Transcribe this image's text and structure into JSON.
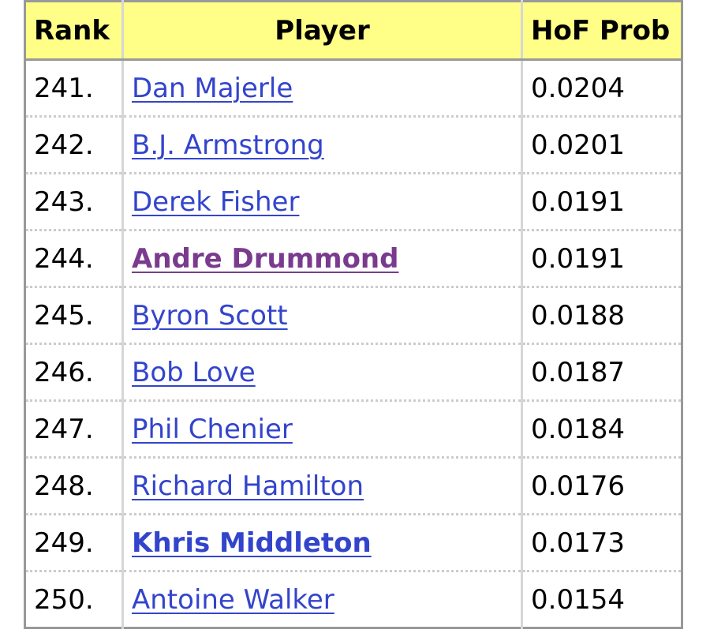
{
  "table": {
    "headers": {
      "rank": "Rank",
      "player": "Player",
      "prob": "HoF Prob"
    },
    "rows": [
      {
        "rank": "241.",
        "player": "Dan Majerle",
        "prob": "0.0204",
        "style": "normal"
      },
      {
        "rank": "242.",
        "player": "B.J. Armstrong",
        "prob": "0.0201",
        "style": "normal"
      },
      {
        "rank": "243.",
        "player": "Derek Fisher",
        "prob": "0.0191",
        "style": "normal"
      },
      {
        "rank": "244.",
        "player": "Andre Drummond",
        "prob": "0.0191",
        "style": "visited"
      },
      {
        "rank": "245.",
        "player": "Byron Scott",
        "prob": "0.0188",
        "style": "normal"
      },
      {
        "rank": "246.",
        "player": "Bob Love",
        "prob": "0.0187",
        "style": "normal"
      },
      {
        "rank": "247.",
        "player": "Phil Chenier",
        "prob": "0.0184",
        "style": "normal"
      },
      {
        "rank": "248.",
        "player": "Richard Hamilton",
        "prob": "0.0176",
        "style": "normal"
      },
      {
        "rank": "249.",
        "player": "Khris Middleton",
        "prob": "0.0173",
        "style": "bold"
      },
      {
        "rank": "250.",
        "player": "Antoine Walker",
        "prob": "0.0154",
        "style": "normal"
      }
    ]
  },
  "colors": {
    "header_bg": "#ffff88",
    "link": "#3344cc",
    "visited_link": "#7a3a8e",
    "border": "#999999"
  }
}
